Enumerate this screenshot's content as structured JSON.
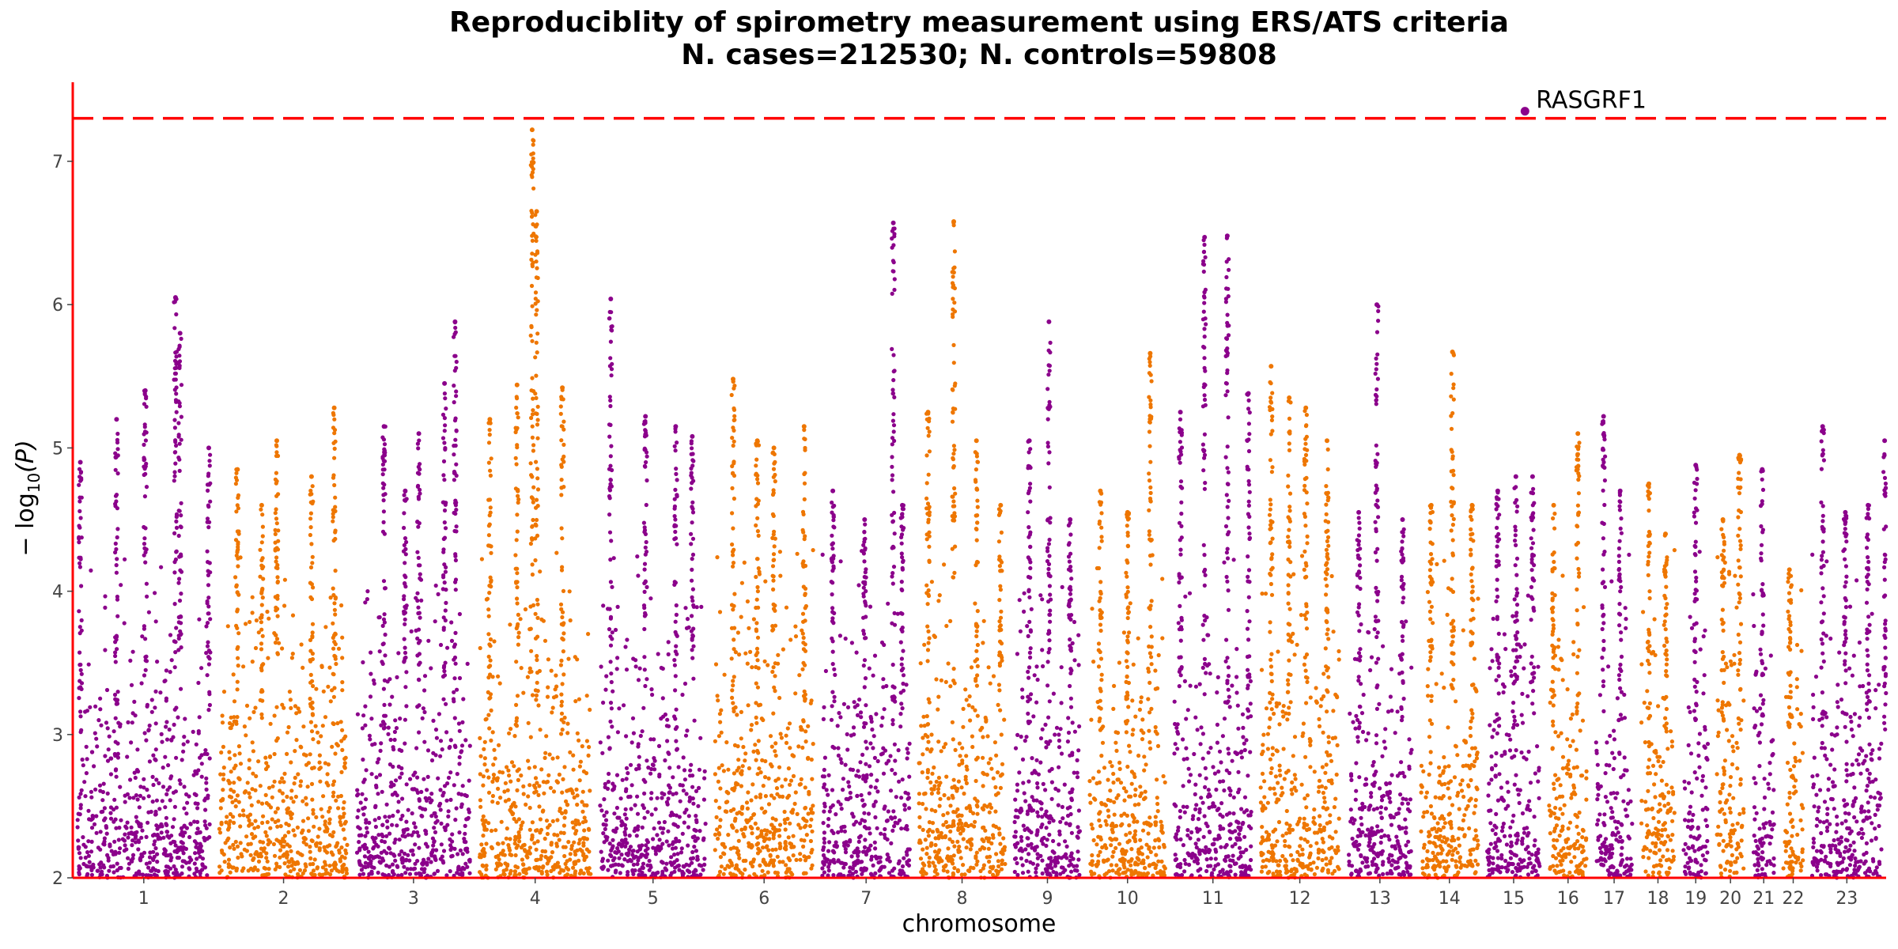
{
  "chart_data": {
    "type": "scatter",
    "title": "Reproduciblity of spirometry measurement using ERS/ATS criteria",
    "subtitle": "N. cases=212530; N. controls=59808",
    "xlabel": "chromosome",
    "ylabel_prefix": "− log",
    "ylabel_sub": "10",
    "ylabel_suffix": "(P)",
    "ylim": [
      2,
      7.55
    ],
    "yticks": [
      "2",
      "3",
      "4",
      "5",
      "6",
      "7"
    ],
    "threshold": 7.3,
    "colors": {
      "odd": "#8B008B",
      "even": "#EE7600",
      "axis": "#FF0000",
      "threshold": "#FF0000"
    },
    "chromosomes": [
      {
        "label": "1",
        "x0": 0,
        "x1": 188,
        "peaks": [
          [
            10,
            4.9
          ],
          [
            58,
            5.2
          ],
          [
            96,
            5.4
          ],
          [
            136,
            6.05
          ],
          [
            142,
            5.8
          ],
          [
            180,
            5.0
          ]
        ]
      },
      {
        "label": "2",
        "x0": 188,
        "x1": 370,
        "peaks": [
          [
            218,
            4.85
          ],
          [
            250,
            4.6
          ],
          [
            270,
            5.05
          ],
          [
            316,
            4.8
          ],
          [
            346,
            5.28
          ]
        ]
      },
      {
        "label": "3",
        "x0": 370,
        "x1": 532,
        "peaks": [
          [
            412,
            5.15
          ],
          [
            440,
            4.7
          ],
          [
            458,
            5.1
          ],
          [
            492,
            5.45
          ],
          [
            506,
            5.88
          ]
        ]
      },
      {
        "label": "4",
        "x0": 532,
        "x1": 692,
        "peaks": [
          [
            552,
            5.2
          ],
          [
            588,
            5.44
          ],
          [
            608,
            7.22
          ],
          [
            614,
            6.65
          ],
          [
            648,
            5.42
          ]
        ]
      },
      {
        "label": "5",
        "x0": 692,
        "x1": 844,
        "peaks": [
          [
            712,
            6.04
          ],
          [
            758,
            5.22
          ],
          [
            798,
            5.15
          ],
          [
            820,
            5.08
          ]
        ]
      },
      {
        "label": "6",
        "x0": 844,
        "x1": 986,
        "peaks": [
          [
            874,
            5.48
          ],
          [
            906,
            5.05
          ],
          [
            928,
            5.0
          ],
          [
            968,
            5.15
          ]
        ]
      },
      {
        "label": "7",
        "x0": 986,
        "x1": 1114,
        "peaks": [
          [
            1006,
            4.7
          ],
          [
            1048,
            4.5
          ],
          [
            1086,
            6.57
          ],
          [
            1098,
            4.6
          ]
        ]
      },
      {
        "label": "8",
        "x0": 1114,
        "x1": 1240,
        "peaks": [
          [
            1132,
            5.25
          ],
          [
            1166,
            6.58
          ],
          [
            1196,
            5.05
          ],
          [
            1228,
            4.6
          ]
        ]
      },
      {
        "label": "9",
        "x0": 1240,
        "x1": 1340,
        "peaks": [
          [
            1266,
            5.05
          ],
          [
            1292,
            5.88
          ],
          [
            1320,
            4.5
          ]
        ]
      },
      {
        "label": "10",
        "x0": 1340,
        "x1": 1452,
        "peaks": [
          [
            1360,
            4.7
          ],
          [
            1396,
            4.55
          ],
          [
            1426,
            5.66
          ]
        ]
      },
      {
        "label": "11",
        "x0": 1452,
        "x1": 1566,
        "peaks": [
          [
            1466,
            5.25
          ],
          [
            1498,
            6.47
          ],
          [
            1528,
            6.48
          ],
          [
            1556,
            5.38
          ]
        ]
      },
      {
        "label": "12",
        "x0": 1566,
        "x1": 1682,
        "peaks": [
          [
            1586,
            5.57
          ],
          [
            1610,
            5.35
          ],
          [
            1632,
            5.28
          ],
          [
            1660,
            5.05
          ]
        ]
      },
      {
        "label": "13",
        "x0": 1682,
        "x1": 1778,
        "peaks": [
          [
            1702,
            4.55
          ],
          [
            1726,
            6.0
          ],
          [
            1760,
            4.5
          ]
        ]
      },
      {
        "label": "14",
        "x0": 1778,
        "x1": 1866,
        "peaks": [
          [
            1798,
            4.6
          ],
          [
            1826,
            5.67
          ],
          [
            1852,
            4.6
          ]
        ]
      },
      {
        "label": "15",
        "x0": 1866,
        "x1": 1948,
        "peaks": [
          [
            1886,
            4.7
          ],
          [
            1910,
            4.8
          ],
          [
            1932,
            4.8
          ]
        ]
      },
      {
        "label": "16",
        "x0": 1948,
        "x1": 2010,
        "peaks": [
          [
            1960,
            4.6
          ],
          [
            1992,
            5.1
          ]
        ]
      },
      {
        "label": "17",
        "x0": 2010,
        "x1": 2070,
        "peaks": [
          [
            2026,
            5.22
          ],
          [
            2048,
            4.7
          ]
        ]
      },
      {
        "label": "18",
        "x0": 2070,
        "x1": 2126,
        "peaks": [
          [
            2086,
            4.75
          ],
          [
            2108,
            4.4
          ]
        ]
      },
      {
        "label": "19",
        "x0": 2126,
        "x1": 2170,
        "peaks": [
          [
            2148,
            4.88
          ]
        ]
      },
      {
        "label": "20",
        "x0": 2170,
        "x1": 2218,
        "peaks": [
          [
            2184,
            4.5
          ],
          [
            2206,
            4.95
          ]
        ]
      },
      {
        "label": "21",
        "x0": 2218,
        "x1": 2258,
        "peaks": [
          [
            2236,
            4.85
          ]
        ]
      },
      {
        "label": "22",
        "x0": 2258,
        "x1": 2296,
        "peaks": [
          [
            2272,
            4.15
          ]
        ]
      },
      {
        "label": "23",
        "x0": 2296,
        "x1": 2400,
        "peaks": [
          [
            2316,
            5.15
          ],
          [
            2346,
            4.55
          ],
          [
            2376,
            4.6
          ],
          [
            2398,
            5.05
          ]
        ]
      }
    ],
    "top_hit": {
      "label": "RASGRF1",
      "chromosome": "15",
      "pos": 1922,
      "y": 7.35
    }
  }
}
